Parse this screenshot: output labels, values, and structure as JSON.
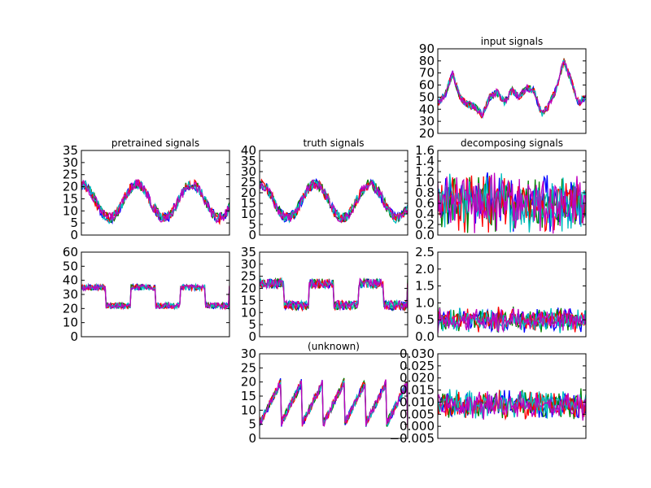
{
  "figure": {
    "background": "#ffffff"
  },
  "series_colors": [
    "#0000ff",
    "#008000",
    "#ff0000",
    "#00bfbf",
    "#bf00bf"
  ],
  "chart_data": [
    {
      "id": "input",
      "type": "line",
      "title": "input signals",
      "ylim": [
        20,
        90
      ],
      "yticks": [
        "20",
        "30",
        "40",
        "50",
        "60",
        "70",
        "80",
        "90"
      ],
      "shape": {
        "kind": "interp",
        "keys": [
          [
            0,
            45
          ],
          [
            0.05,
            52
          ],
          [
            0.1,
            70
          ],
          [
            0.15,
            50
          ],
          [
            0.2,
            44
          ],
          [
            0.25,
            42
          ],
          [
            0.3,
            35
          ],
          [
            0.35,
            50
          ],
          [
            0.4,
            54
          ],
          [
            0.45,
            46
          ],
          [
            0.5,
            56
          ],
          [
            0.55,
            50
          ],
          [
            0.6,
            58
          ],
          [
            0.65,
            55
          ],
          [
            0.7,
            36
          ],
          [
            0.75,
            43
          ],
          [
            0.8,
            57
          ],
          [
            0.85,
            80
          ],
          [
            0.9,
            64
          ],
          [
            0.95,
            45
          ],
          [
            1,
            50
          ]
        ],
        "noise": 3
      }
    },
    {
      "id": "pretrained-1",
      "type": "line",
      "title": "pretrained signals",
      "ylim": [
        0,
        35
      ],
      "yticks": [
        "0",
        "5",
        "10",
        "15",
        "20",
        "25",
        "30",
        "35"
      ],
      "shape": {
        "kind": "sine",
        "base": 14,
        "amp": 7,
        "periods": 2.7,
        "phase": 1.5,
        "noise": 2.2
      }
    },
    {
      "id": "truth-1",
      "type": "line",
      "title": "truth signals",
      "ylim": [
        0,
        40
      ],
      "yticks": [
        "0",
        "5",
        "10",
        "15",
        "20",
        "25",
        "30",
        "35",
        "40"
      ],
      "shape": {
        "kind": "sine",
        "base": 16,
        "amp": 8,
        "periods": 2.7,
        "phase": 1.5,
        "noise": 2.5
      }
    },
    {
      "id": "decomposing-1",
      "type": "line",
      "title": "decomposing signals",
      "ylim": [
        0,
        1.6
      ],
      "yticks": [
        "0.0",
        "0.2",
        "0.4",
        "0.6",
        "0.8",
        "1.0",
        "1.2",
        "1.4",
        "1.6"
      ],
      "shape": {
        "kind": "noise",
        "base": 0.6,
        "amp": 0.45,
        "min": 0,
        "max": 1.5
      }
    },
    {
      "id": "pretrained-2",
      "type": "line",
      "title": "",
      "ylim": [
        0,
        60
      ],
      "yticks": [
        "0",
        "10",
        "20",
        "30",
        "40",
        "50",
        "60"
      ],
      "shape": {
        "kind": "square",
        "high": 35,
        "low": 22,
        "periods": 3,
        "noise": 2
      }
    },
    {
      "id": "truth-2",
      "type": "line",
      "title": "",
      "ylim": [
        0,
        35
      ],
      "yticks": [
        "0",
        "5",
        "10",
        "15",
        "20",
        "25",
        "30",
        "35"
      ],
      "shape": {
        "kind": "square",
        "high": 22,
        "low": 13,
        "periods": 3,
        "noise": 2
      }
    },
    {
      "id": "decomposing-2",
      "type": "line",
      "title": "",
      "ylim": [
        0,
        2.5
      ],
      "yticks": [
        "0.0",
        "0.5",
        "1.0",
        "1.5",
        "2.0",
        "2.5"
      ],
      "shape": {
        "kind": "noise",
        "base": 0.5,
        "amp": 0.3,
        "min": 0.05,
        "max": 2.3
      }
    },
    {
      "id": "unknown",
      "type": "line",
      "title": "(unknown)",
      "ylim": [
        0,
        30
      ],
      "yticks": [
        "0",
        "5",
        "10",
        "15",
        "20",
        "25",
        "30"
      ],
      "shape": {
        "kind": "saw",
        "low": 5,
        "high": 20,
        "periods": 7,
        "noise": 1.5
      }
    },
    {
      "id": "decomposing-3",
      "type": "line",
      "title": "",
      "ylim": [
        -0.005,
        0.03
      ],
      "yticks": [
        "−0.005",
        "0.000",
        "0.005",
        "0.010",
        "0.015",
        "0.020",
        "0.025",
        "0.030"
      ],
      "shape": {
        "kind": "noise",
        "base": 0.009,
        "amp": 0.005,
        "min": -0.004,
        "max": 0.028
      }
    }
  ]
}
